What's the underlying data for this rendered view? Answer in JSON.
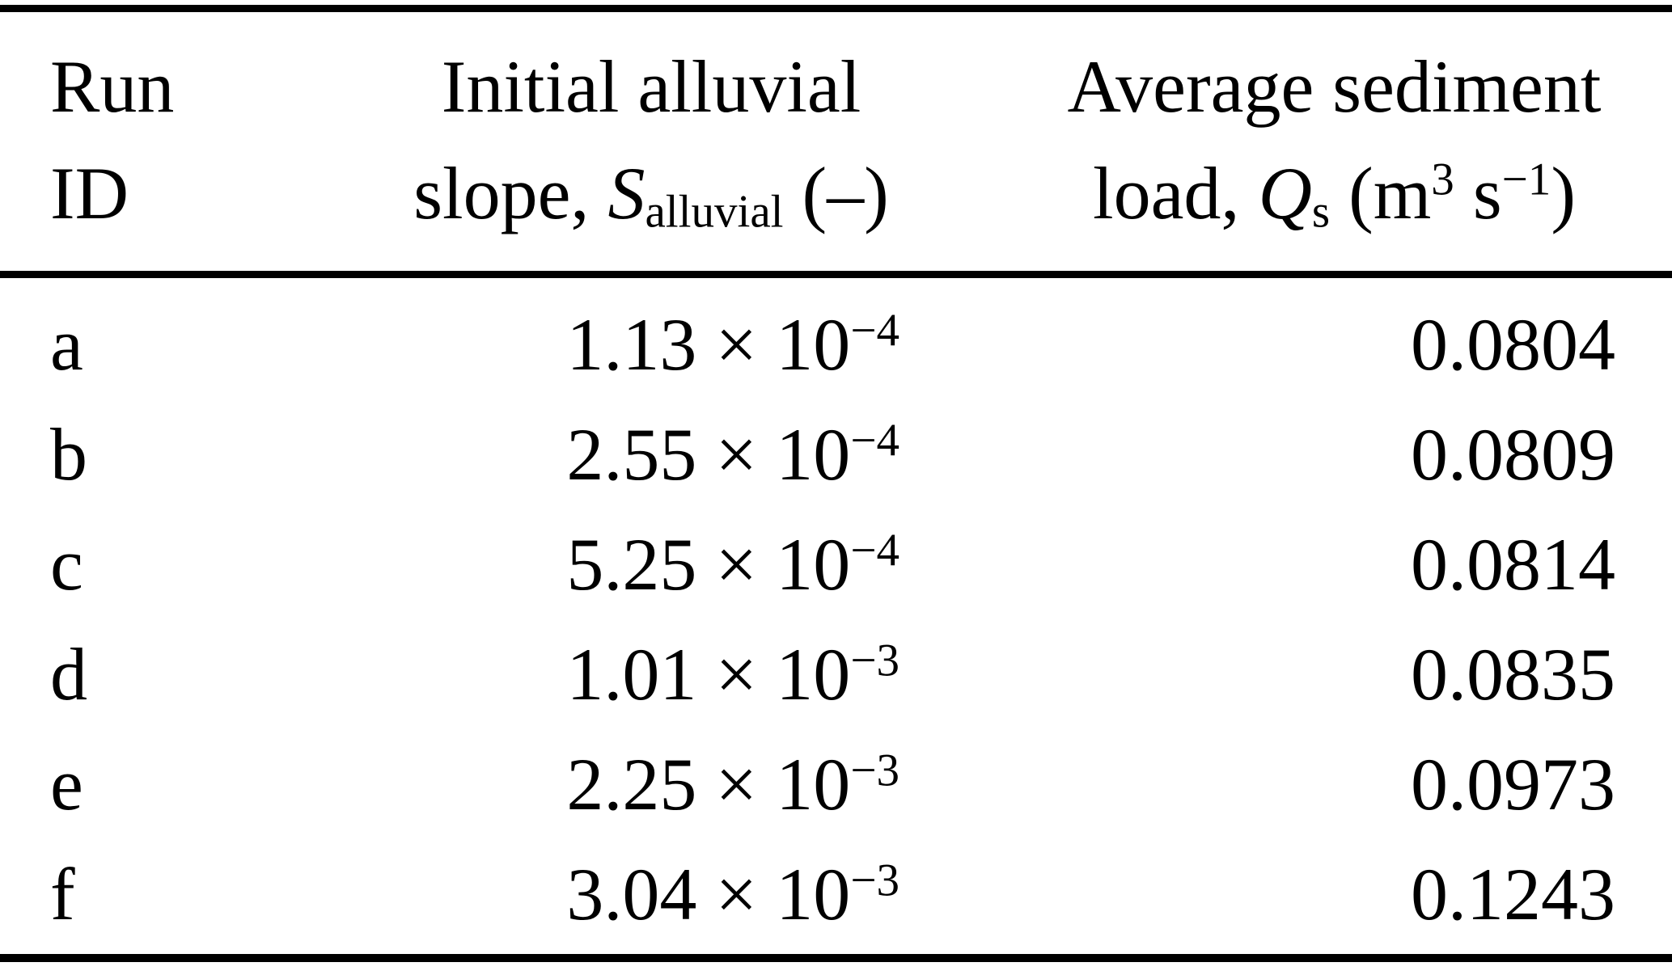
{
  "colors": {
    "text": "#000000",
    "rule": "#000000",
    "background": "#ffffff"
  },
  "table": {
    "header": {
      "col1": {
        "line1": "Run",
        "line2": "ID"
      },
      "col2": {
        "line1": "Initial alluvial",
        "line2_prefix": "slope, ",
        "symbol": "S",
        "subscript": "alluvial",
        "line2_suffix": " (–)"
      },
      "col3": {
        "line1": "Average sediment",
        "line2_prefix": "load, ",
        "symbol": "Q",
        "subscript": "s",
        "unit_open": " (m",
        "unit_sup1": "3",
        "unit_mid": " s",
        "unit_sup2": "−1",
        "unit_close": ")"
      }
    },
    "rows": [
      {
        "id": "a",
        "slope_base": "1.13 × 10",
        "slope_exp": "−4",
        "load": "0.0804"
      },
      {
        "id": "b",
        "slope_base": "2.55 × 10",
        "slope_exp": "−4",
        "load": "0.0809"
      },
      {
        "id": "c",
        "slope_base": "5.25 × 10",
        "slope_exp": "−4",
        "load": "0.0814"
      },
      {
        "id": "d",
        "slope_base": "1.01 × 10",
        "slope_exp": "−3",
        "load": "0.0835"
      },
      {
        "id": "e",
        "slope_base": "2.25 × 10",
        "slope_exp": "−3",
        "load": "0.0973"
      },
      {
        "id": "f",
        "slope_base": "3.04 × 10",
        "slope_exp": "−3",
        "load": "0.1243"
      }
    ]
  }
}
